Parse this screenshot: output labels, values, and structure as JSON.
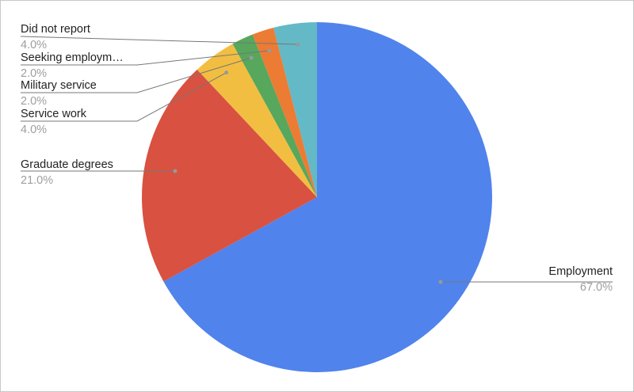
{
  "chart_data": {
    "type": "pie",
    "start_angle": "top, clockwise",
    "slices": [
      {
        "label": "Employment",
        "value": 67.0,
        "display": "67.0%",
        "color": "#5083ec"
      },
      {
        "label": "Graduate degrees",
        "value": 21.0,
        "display": "21.0%",
        "color": "#d95140"
      },
      {
        "label": "Service work",
        "value": 4.0,
        "display": "4.0%",
        "color": "#f2be42"
      },
      {
        "label": "Military service",
        "value": 2.0,
        "display": "2.0%",
        "color": "#57a75d"
      },
      {
        "label": "Seeking employm…",
        "value": 2.0,
        "display": "2.0%",
        "color": "#ec7b34"
      },
      {
        "label": "Did not report",
        "value": 4.0,
        "display": "4.0%",
        "color": "#63b9c5"
      }
    ],
    "legend": "none (labels with leader lines)"
  }
}
